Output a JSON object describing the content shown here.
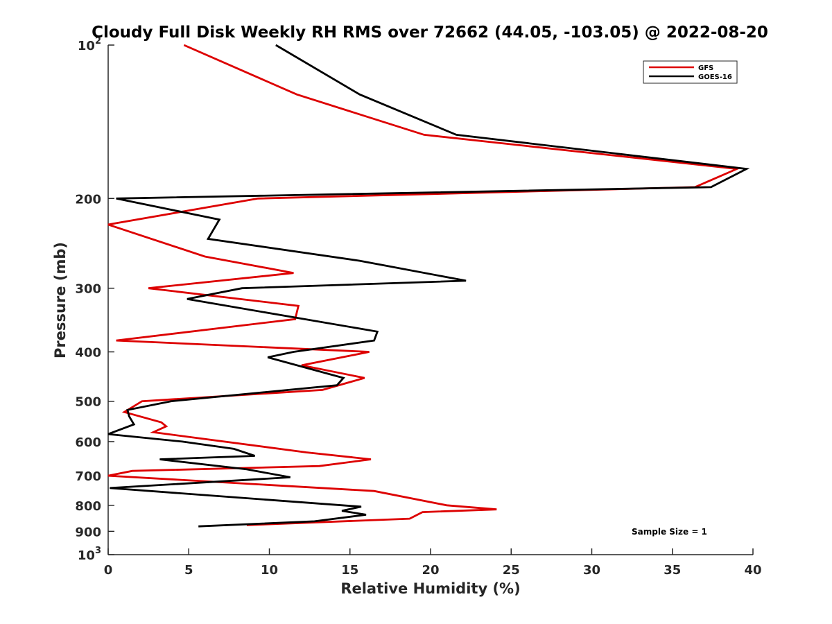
{
  "chart_data": {
    "type": "line",
    "title": "Cloudy Full Disk Weekly RH RMS over 72662 (44.05, -103.05) @ 2022-08-20",
    "xlabel": "Relative Humidity (%)",
    "ylabel": "Pressure (mb)",
    "xlim": [
      0,
      40
    ],
    "ylim": [
      100,
      1000
    ],
    "y_scale": "log",
    "y_reversed": true,
    "x_ticks": [
      "0",
      "5",
      "10",
      "15",
      "20",
      "25",
      "30",
      "35",
      "40"
    ],
    "y_ticks": [
      {
        "value": 100,
        "base": "10",
        "exp": "2"
      },
      {
        "value": 200,
        "label": "200"
      },
      {
        "value": 300,
        "label": "300"
      },
      {
        "value": 400,
        "label": "400"
      },
      {
        "value": 500,
        "label": "500"
      },
      {
        "value": 600,
        "label": "600"
      },
      {
        "value": 700,
        "label": "700"
      },
      {
        "value": 800,
        "label": "800"
      },
      {
        "value": 900,
        "label": "900"
      },
      {
        "value": 1000,
        "base": "10",
        "exp": "3"
      }
    ],
    "legend_position": "top-right",
    "annotation": "Sample Size = 1",
    "series": [
      {
        "name": "GFS",
        "color": "#dd0000",
        "rh": [
          4.7,
          11.7,
          19.6,
          39.0,
          36.4,
          9.3,
          0,
          6.0,
          11.5,
          2.5,
          11.8,
          11.6,
          0.5,
          16.2,
          12.0,
          15.9,
          13.3,
          2.1,
          1.0,
          3.3,
          3.6,
          2.8,
          12.3,
          16.3,
          13.1,
          1.5,
          0,
          16.5,
          21.0,
          24.1,
          19.5,
          18.7,
          8.6
        ],
        "pressure": [
          100,
          125,
          150,
          175,
          190,
          200,
          225,
          260,
          280,
          300,
          325,
          345,
          380,
          400,
          425,
          450,
          475,
          500,
          525,
          550,
          560,
          575,
          630,
          650,
          670,
          685,
          700,
          750,
          800,
          815,
          825,
          850,
          875
        ]
      },
      {
        "name": "GOES-16",
        "color": "#000000",
        "rh": [
          10.4,
          15.6,
          21.6,
          39.6,
          37.4,
          0.5,
          6.9,
          6.2,
          15.6,
          22.2,
          8.3,
          4.9,
          16.7,
          16.5,
          11.5,
          9.9,
          14.6,
          14.2,
          3.9,
          1.2,
          1.3,
          1.6,
          0,
          4.6,
          7.8,
          9.1,
          3.2,
          8.6,
          11.3,
          0.1,
          15.7,
          14.5,
          16.0,
          12.8,
          5.6
        ],
        "pressure": [
          100,
          125,
          150,
          175,
          190,
          200,
          220,
          240,
          265,
          290,
          300,
          315,
          365,
          380,
          400,
          410,
          450,
          465,
          500,
          520,
          535,
          555,
          580,
          600,
          620,
          640,
          650,
          680,
          705,
          740,
          805,
          820,
          835,
          860,
          880
        ]
      }
    ]
  }
}
